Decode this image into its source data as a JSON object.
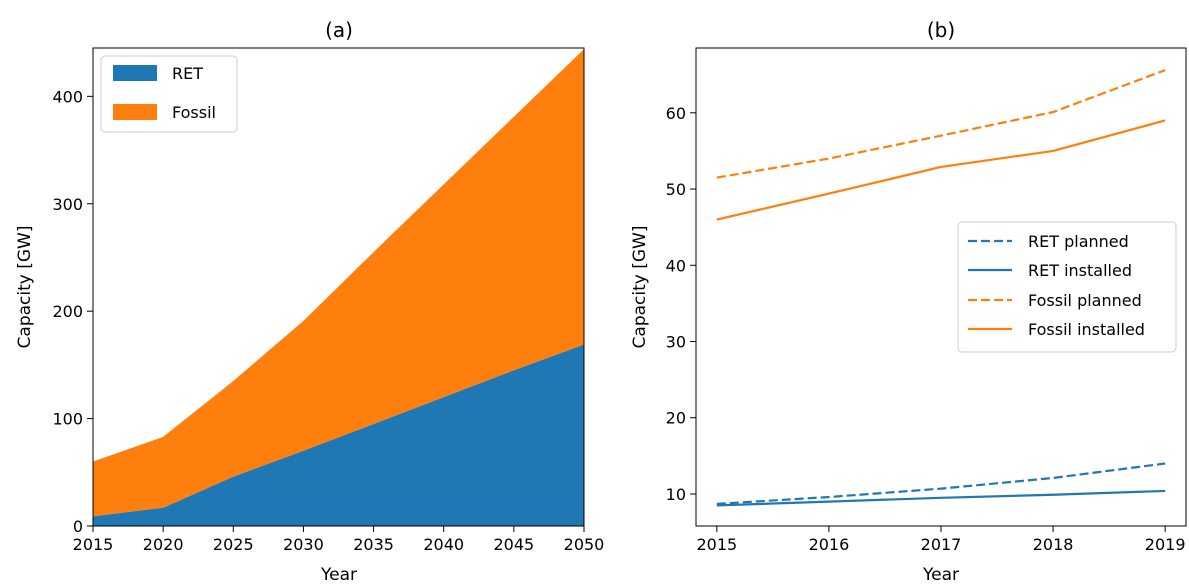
{
  "colors": {
    "ret": "#1f77b4",
    "fossil": "#ff7f0e"
  },
  "chart_data": [
    {
      "type": "area",
      "title": "(a)",
      "xlabel": "Year",
      "ylabel": "Capacity [GW]",
      "stacked": true,
      "x": [
        2015,
        2020,
        2025,
        2030,
        2035,
        2040,
        2045,
        2050
      ],
      "xlim": [
        2015,
        2050
      ],
      "ylim": [
        0,
        445
      ],
      "xticks": [
        2015,
        2020,
        2025,
        2030,
        2035,
        2040,
        2045,
        2050
      ],
      "yticks": [
        0,
        100,
        200,
        300,
        400
      ],
      "grid": false,
      "legend_position": "top-left",
      "series": [
        {
          "name": "RET",
          "color": "#1f77b4",
          "values": [
            9,
            17,
            46,
            70,
            95,
            120,
            145,
            169
          ]
        },
        {
          "name": "Fossil",
          "color": "#ff7f0e",
          "values": [
            51,
            66,
            89,
            121,
            160,
            198,
            236,
            275
          ]
        }
      ]
    },
    {
      "type": "line",
      "title": "(b)",
      "xlabel": "Year",
      "ylabel": "Capacity [GW]",
      "x": [
        2015,
        2016,
        2017,
        2018,
        2019
      ],
      "xlim": [
        2015,
        2019
      ],
      "ylim": [
        5.8,
        68.5
      ],
      "xticks": [
        2015,
        2016,
        2017,
        2018,
        2019
      ],
      "yticks": [
        10,
        20,
        30,
        40,
        50,
        60
      ],
      "grid": false,
      "legend_position": "center-right",
      "series": [
        {
          "name": "RET planned",
          "color": "#1f77b4",
          "style": "dashed",
          "values": [
            8.7,
            9.6,
            10.7,
            12.1,
            14.0
          ]
        },
        {
          "name": "RET installed",
          "color": "#1f77b4",
          "style": "solid",
          "values": [
            8.5,
            9.0,
            9.5,
            9.9,
            10.4
          ]
        },
        {
          "name": "Fossil planned",
          "color": "#ff7f0e",
          "style": "dashed",
          "values": [
            51.5,
            54.0,
            57.0,
            60.1,
            65.6
          ]
        },
        {
          "name": "Fossil installed",
          "color": "#ff7f0e",
          "style": "solid",
          "values": [
            46.0,
            49.4,
            52.9,
            55.0,
            59.0
          ]
        }
      ]
    }
  ]
}
